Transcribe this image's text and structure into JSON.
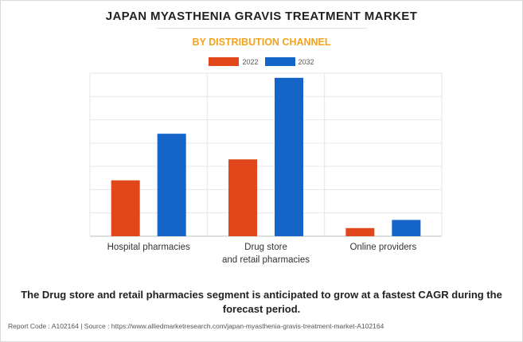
{
  "title": "JAPAN MYASTHENIA GRAVIS TREATMENT MARKET",
  "subtitle": "BY DISTRIBUTION CHANNEL",
  "caption": "The Drug store and retail pharmacies segment is anticipated to grow at a fastest CAGR during the forecast period.",
  "footer": "Report Code : A102164  |  Source : https://www.alliedmarketresearch.com/japan-myasthenia-gravis-treatment-market-A102164",
  "colors": {
    "series_2022": "#e0481c",
    "series_2032": "#1565c8",
    "grid": "#e6e6e6",
    "axis": "#bdbdbd"
  },
  "chart_data": {
    "type": "bar",
    "title": "JAPAN MYASTHENIA GRAVIS TREATMENT MARKET",
    "subtitle": "BY DISTRIBUTION CHANNEL",
    "categories": [
      "Hospital pharmacies",
      "Drug store and retail pharmacies",
      "Online providers"
    ],
    "category_lines": [
      [
        "Hospital pharmacies"
      ],
      [
        "Drug store",
        "and retail pharmacies"
      ],
      [
        "Online providers"
      ]
    ],
    "series": [
      {
        "name": "2022",
        "values": [
          2.4,
          3.3,
          0.35
        ]
      },
      {
        "name": "2032",
        "values": [
          4.4,
          6.8,
          0.7
        ]
      }
    ],
    "ylim": [
      0,
      7
    ],
    "y_gridlines": 7,
    "y_axis_labels_shown": false,
    "legend_position": "top-center",
    "grid": true
  }
}
